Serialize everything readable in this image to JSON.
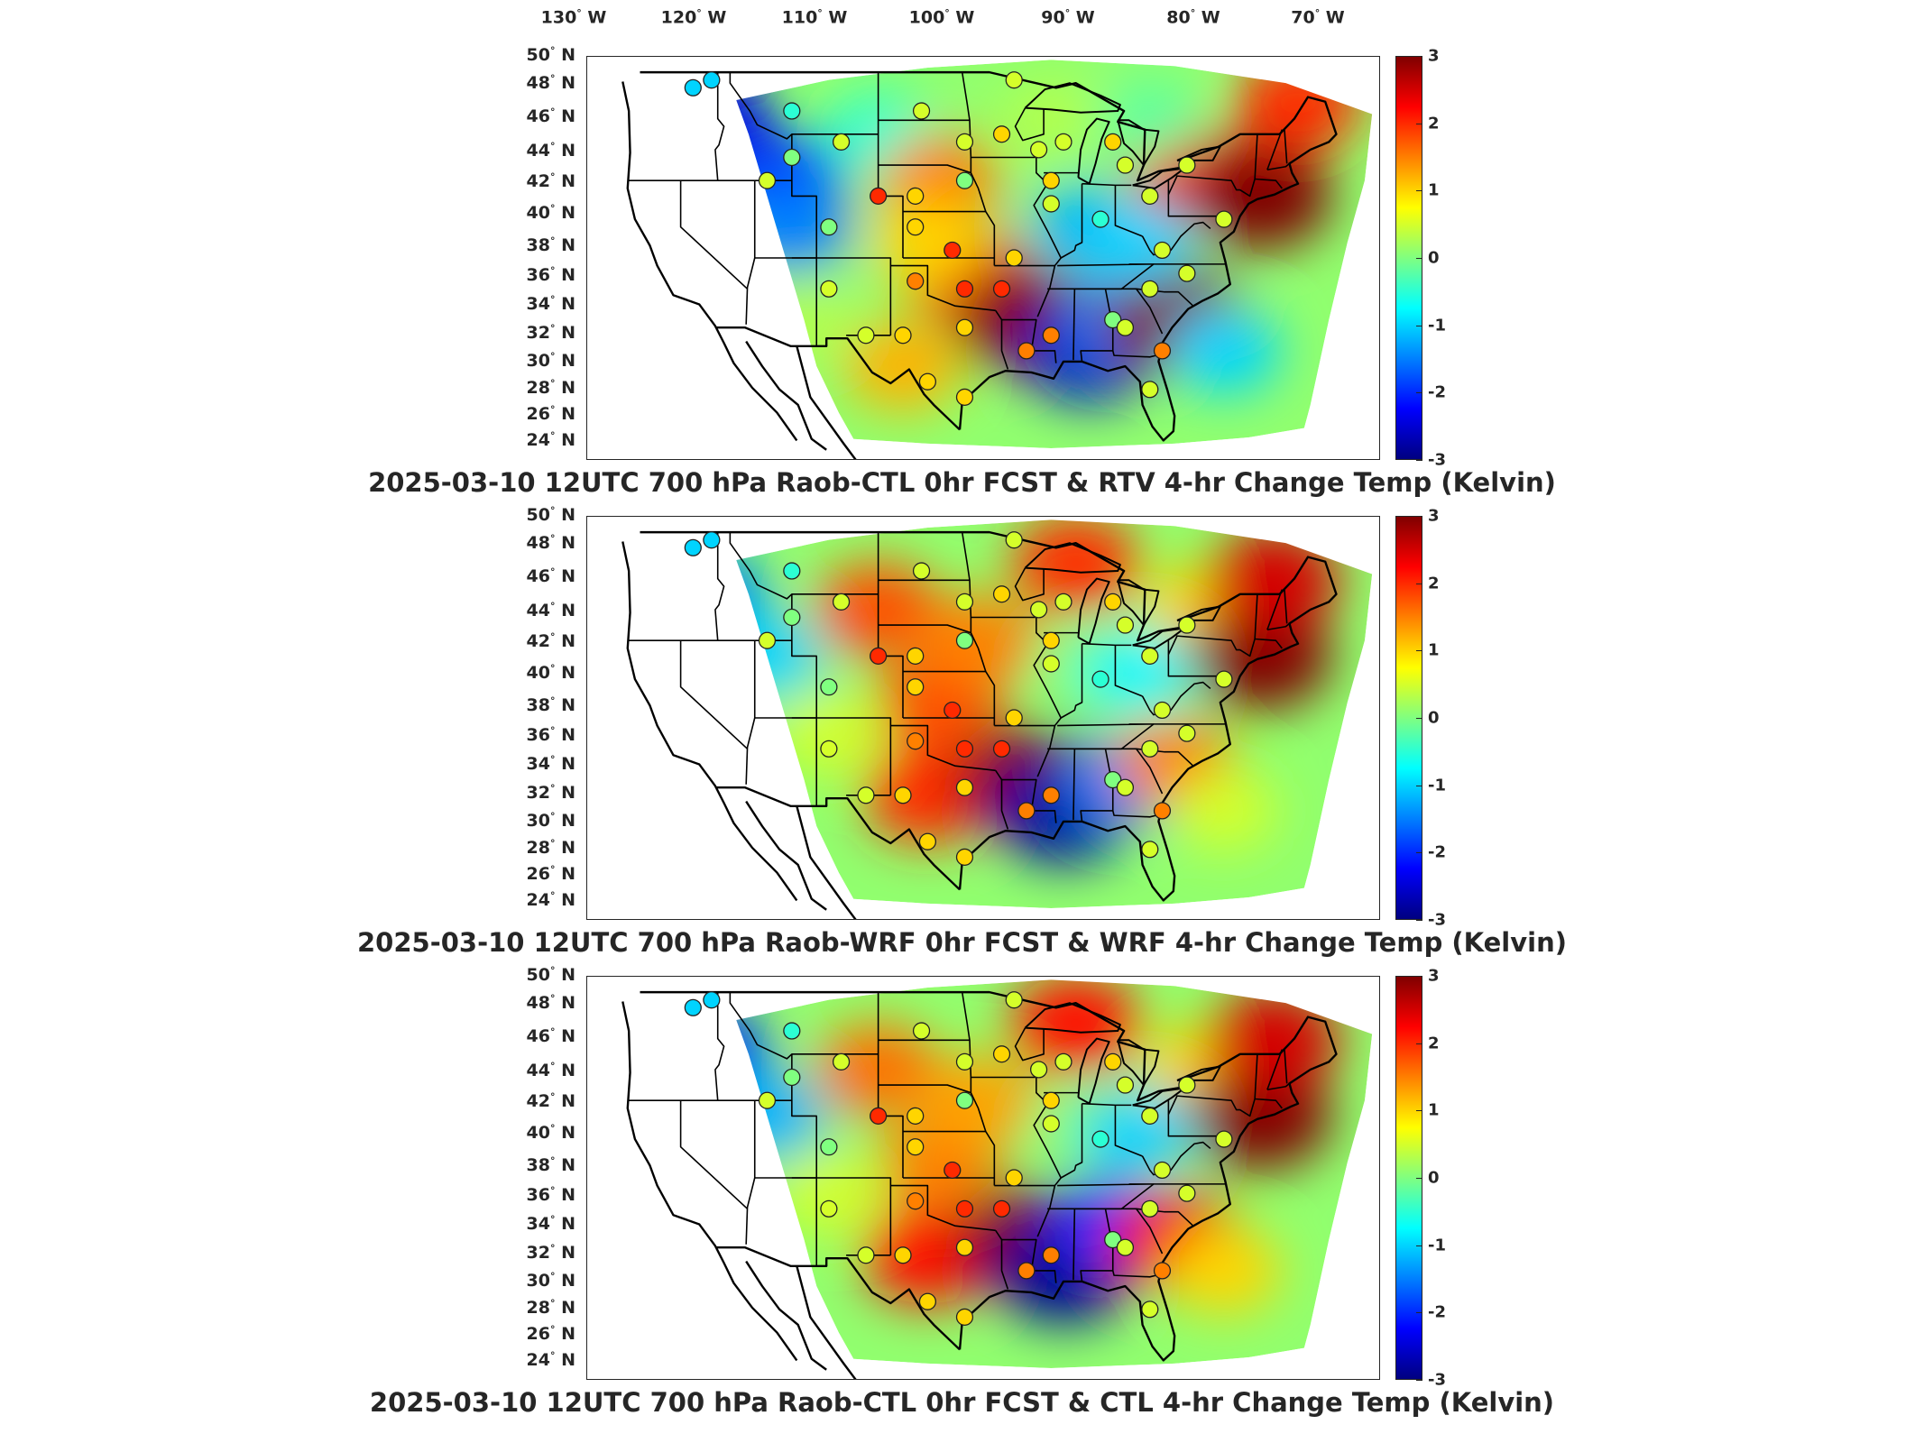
{
  "lon_labels": [
    {
      "deg": "130",
      "hem": "W"
    },
    {
      "deg": "120",
      "hem": "W"
    },
    {
      "deg": "110",
      "hem": "W"
    },
    {
      "deg": "100",
      "hem": "W"
    },
    {
      "deg": "90",
      "hem": "W"
    },
    {
      "deg": "80",
      "hem": "W"
    },
    {
      "deg": "70",
      "hem": "W"
    }
  ],
  "lat_labels": [
    {
      "deg": "50",
      "hem": "N"
    },
    {
      "deg": "48",
      "hem": "N"
    },
    {
      "deg": "46",
      "hem": "N"
    },
    {
      "deg": "44",
      "hem": "N"
    },
    {
      "deg": "42",
      "hem": "N"
    },
    {
      "deg": "40",
      "hem": "N"
    },
    {
      "deg": "38",
      "hem": "N"
    },
    {
      "deg": "36",
      "hem": "N"
    },
    {
      "deg": "34",
      "hem": "N"
    },
    {
      "deg": "32",
      "hem": "N"
    },
    {
      "deg": "30",
      "hem": "N"
    },
    {
      "deg": "28",
      "hem": "N"
    },
    {
      "deg": "26",
      "hem": "N"
    },
    {
      "deg": "24",
      "hem": "N"
    }
  ],
  "colorbar": {
    "ticks": [
      "3",
      "2",
      "1",
      "0",
      "-1",
      "-2",
      "-3"
    ],
    "range": [
      -3,
      3
    ],
    "colormap": "jet",
    "colors": [
      "#800000",
      "#ff0000",
      "#ff8000",
      "#ffff00",
      "#80ff80",
      "#00ffff",
      "#0080ff",
      "#0000ff",
      "#000080"
    ]
  },
  "panels": [
    {
      "title": "2025-03-10 12UTC 700 hPa Raob-CTL 0hr FCST & RTV 4-hr Change Temp (Kelvin)",
      "variant": "rtv"
    },
    {
      "title": "2025-03-10 12UTC 700 hPa Raob-WRF 0hr FCST & WRF 4-hr Change Temp (Kelvin)",
      "variant": "wrf"
    },
    {
      "title": "2025-03-10 12UTC 700 hPa Raob-CTL 0hr FCST & CTL 4-hr Change Temp (Kelvin)",
      "variant": "ctl"
    }
  ],
  "blobs": {
    "rtv": [
      {
        "lon": -118,
        "lat": 46,
        "v": -2.4
      },
      {
        "lon": -112,
        "lat": 42,
        "v": -2
      },
      {
        "lon": -111,
        "lat": 39,
        "v": -1.5
      },
      {
        "lon": -104,
        "lat": 45,
        "v": -0.5
      },
      {
        "lon": -99,
        "lat": 42,
        "v": 1.5
      },
      {
        "lon": -97,
        "lat": 36,
        "v": 2
      },
      {
        "lon": -92,
        "lat": 33,
        "v": 3
      },
      {
        "lon": -87,
        "lat": 31,
        "v": -2.6
      },
      {
        "lon": -84,
        "lat": 33,
        "v": -1.5
      },
      {
        "lon": -80,
        "lat": 33,
        "v": 3
      },
      {
        "lon": -78,
        "lat": 42,
        "v": 2.3
      },
      {
        "lon": -73,
        "lat": 41,
        "v": 3
      },
      {
        "lon": -70,
        "lat": 47,
        "v": 2
      },
      {
        "lon": -87,
        "lat": 39,
        "v": -1.2
      },
      {
        "lon": -83,
        "lat": 38,
        "v": -1
      },
      {
        "lon": -76,
        "lat": 31,
        "v": -1
      },
      {
        "lon": -100,
        "lat": 38,
        "v": 1
      },
      {
        "lon": -90,
        "lat": 46,
        "v": 0.3
      },
      {
        "lon": -102,
        "lat": 30,
        "v": 1.2
      },
      {
        "lon": -110,
        "lat": 33,
        "v": 0.3
      },
      {
        "lon": -82,
        "lat": 46,
        "v": -0.2
      }
    ],
    "wrf": [
      {
        "lon": -118,
        "lat": 45,
        "v": -1.5
      },
      {
        "lon": -113,
        "lat": 41,
        "v": -1
      },
      {
        "lon": -104,
        "lat": 44,
        "v": 1.8
      },
      {
        "lon": -99,
        "lat": 38,
        "v": 1.8
      },
      {
        "lon": -96,
        "lat": 42,
        "v": 1.5
      },
      {
        "lon": -100,
        "lat": 32,
        "v": 2
      },
      {
        "lon": -92,
        "lat": 33,
        "v": 3
      },
      {
        "lon": -89,
        "lat": 31,
        "v": -2.8
      },
      {
        "lon": -84,
        "lat": 33,
        "v": -1.5
      },
      {
        "lon": -80,
        "lat": 34,
        "v": 1.5
      },
      {
        "lon": -88,
        "lat": 47,
        "v": 2
      },
      {
        "lon": -78,
        "lat": 44,
        "v": 1
      },
      {
        "lon": -73,
        "lat": 41,
        "v": 3
      },
      {
        "lon": -72,
        "lat": 46,
        "v": 2.5
      },
      {
        "lon": -87,
        "lat": 40,
        "v": 0
      },
      {
        "lon": -83,
        "lat": 40,
        "v": -0.8
      },
      {
        "lon": -76,
        "lat": 31,
        "v": 0.5
      },
      {
        "lon": -108,
        "lat": 36,
        "v": 0.5
      }
    ],
    "ctl": [
      {
        "lon": -118,
        "lat": 45,
        "v": -2
      },
      {
        "lon": -113,
        "lat": 41,
        "v": -1.2
      },
      {
        "lon": -104,
        "lat": 44,
        "v": 1.6
      },
      {
        "lon": -99,
        "lat": 38,
        "v": 1.5
      },
      {
        "lon": -96,
        "lat": 42,
        "v": 1.3
      },
      {
        "lon": -100,
        "lat": 32,
        "v": 2.2
      },
      {
        "lon": -92,
        "lat": 33,
        "v": 3
      },
      {
        "lon": -89,
        "lat": 31,
        "v": -2.9
      },
      {
        "lon": -85,
        "lat": 34,
        "v": -2
      },
      {
        "lon": -80,
        "lat": 33,
        "v": 2.3
      },
      {
        "lon": -88,
        "lat": 47,
        "v": 2.2
      },
      {
        "lon": -78,
        "lat": 44,
        "v": 1
      },
      {
        "lon": -73,
        "lat": 41,
        "v": 3
      },
      {
        "lon": -72,
        "lat": 46,
        "v": 2.5
      },
      {
        "lon": -87,
        "lat": 40,
        "v": 0
      },
      {
        "lon": -83,
        "lat": 40,
        "v": -1
      },
      {
        "lon": -76,
        "lat": 31,
        "v": 1
      },
      {
        "lon": -108,
        "lat": 36,
        "v": 0.5
      }
    ]
  },
  "stations": [
    {
      "lon": -119,
      "lat": 48,
      "v": -1
    },
    {
      "lon": -117.5,
      "lat": 48.5,
      "v": -1
    },
    {
      "lon": -111,
      "lat": 46.5,
      "v": -0.5
    },
    {
      "lon": -111,
      "lat": 43.5,
      "v": 0
    },
    {
      "lon": -113,
      "lat": 42,
      "v": 0.5
    },
    {
      "lon": -107,
      "lat": 44.5,
      "v": 0.5
    },
    {
      "lon": -100.5,
      "lat": 46.5,
      "v": 0.5
    },
    {
      "lon": -97,
      "lat": 44.5,
      "v": 0.5
    },
    {
      "lon": -104,
      "lat": 41,
      "v": 2
    },
    {
      "lon": -101,
      "lat": 41,
      "v": 1
    },
    {
      "lon": -97,
      "lat": 42,
      "v": 0
    },
    {
      "lon": -93,
      "lat": 48.5,
      "v": 0.5
    },
    {
      "lon": -94,
      "lat": 45,
      "v": 1
    },
    {
      "lon": -91,
      "lat": 44,
      "v": 0.5
    },
    {
      "lon": -89,
      "lat": 44.5,
      "v": 0.5
    },
    {
      "lon": -85,
      "lat": 44.5,
      "v": 1
    },
    {
      "lon": -84,
      "lat": 43,
      "v": 0.5
    },
    {
      "lon": -90,
      "lat": 40.5,
      "v": 0.5
    },
    {
      "lon": -86,
      "lat": 39.5,
      "v": -0.5
    },
    {
      "lon": -82,
      "lat": 41,
      "v": 0.5
    },
    {
      "lon": -79,
      "lat": 43,
      "v": 0.5
    },
    {
      "lon": -76,
      "lat": 39.5,
      "v": 0.5
    },
    {
      "lon": -81,
      "lat": 37.5,
      "v": 0.5
    },
    {
      "lon": -79,
      "lat": 36,
      "v": 0.5
    },
    {
      "lon": -82,
      "lat": 35,
      "v": 0.5
    },
    {
      "lon": -85,
      "lat": 33,
      "v": 0
    },
    {
      "lon": -84,
      "lat": 32.5,
      "v": 0.5
    },
    {
      "lon": -81,
      "lat": 31,
      "v": 1.5
    },
    {
      "lon": -82,
      "lat": 28.5,
      "v": 0.5
    },
    {
      "lon": -90,
      "lat": 32,
      "v": 1.5
    },
    {
      "lon": -92,
      "lat": 31,
      "v": 1.5
    },
    {
      "lon": -94,
      "lat": 35,
      "v": 2
    },
    {
      "lon": -97,
      "lat": 35,
      "v": 2
    },
    {
      "lon": -97,
      "lat": 32.5,
      "v": 1
    },
    {
      "lon": -98,
      "lat": 37.5,
      "v": 2
    },
    {
      "lon": -101,
      "lat": 35.5,
      "v": 1.5
    },
    {
      "lon": -102,
      "lat": 32,
      "v": 1
    },
    {
      "lon": -105,
      "lat": 32,
      "v": 0.5
    },
    {
      "lon": -100,
      "lat": 29,
      "v": 1
    },
    {
      "lon": -97,
      "lat": 28,
      "v": 1
    },
    {
      "lon": -101,
      "lat": 39,
      "v": 1
    },
    {
      "lon": -108,
      "lat": 35,
      "v": 0.5
    },
    {
      "lon": -108,
      "lat": 39,
      "v": 0
    },
    {
      "lon": -93,
      "lat": 37,
      "v": 1
    },
    {
      "lon": -90,
      "lat": 42,
      "v": 1
    }
  ]
}
